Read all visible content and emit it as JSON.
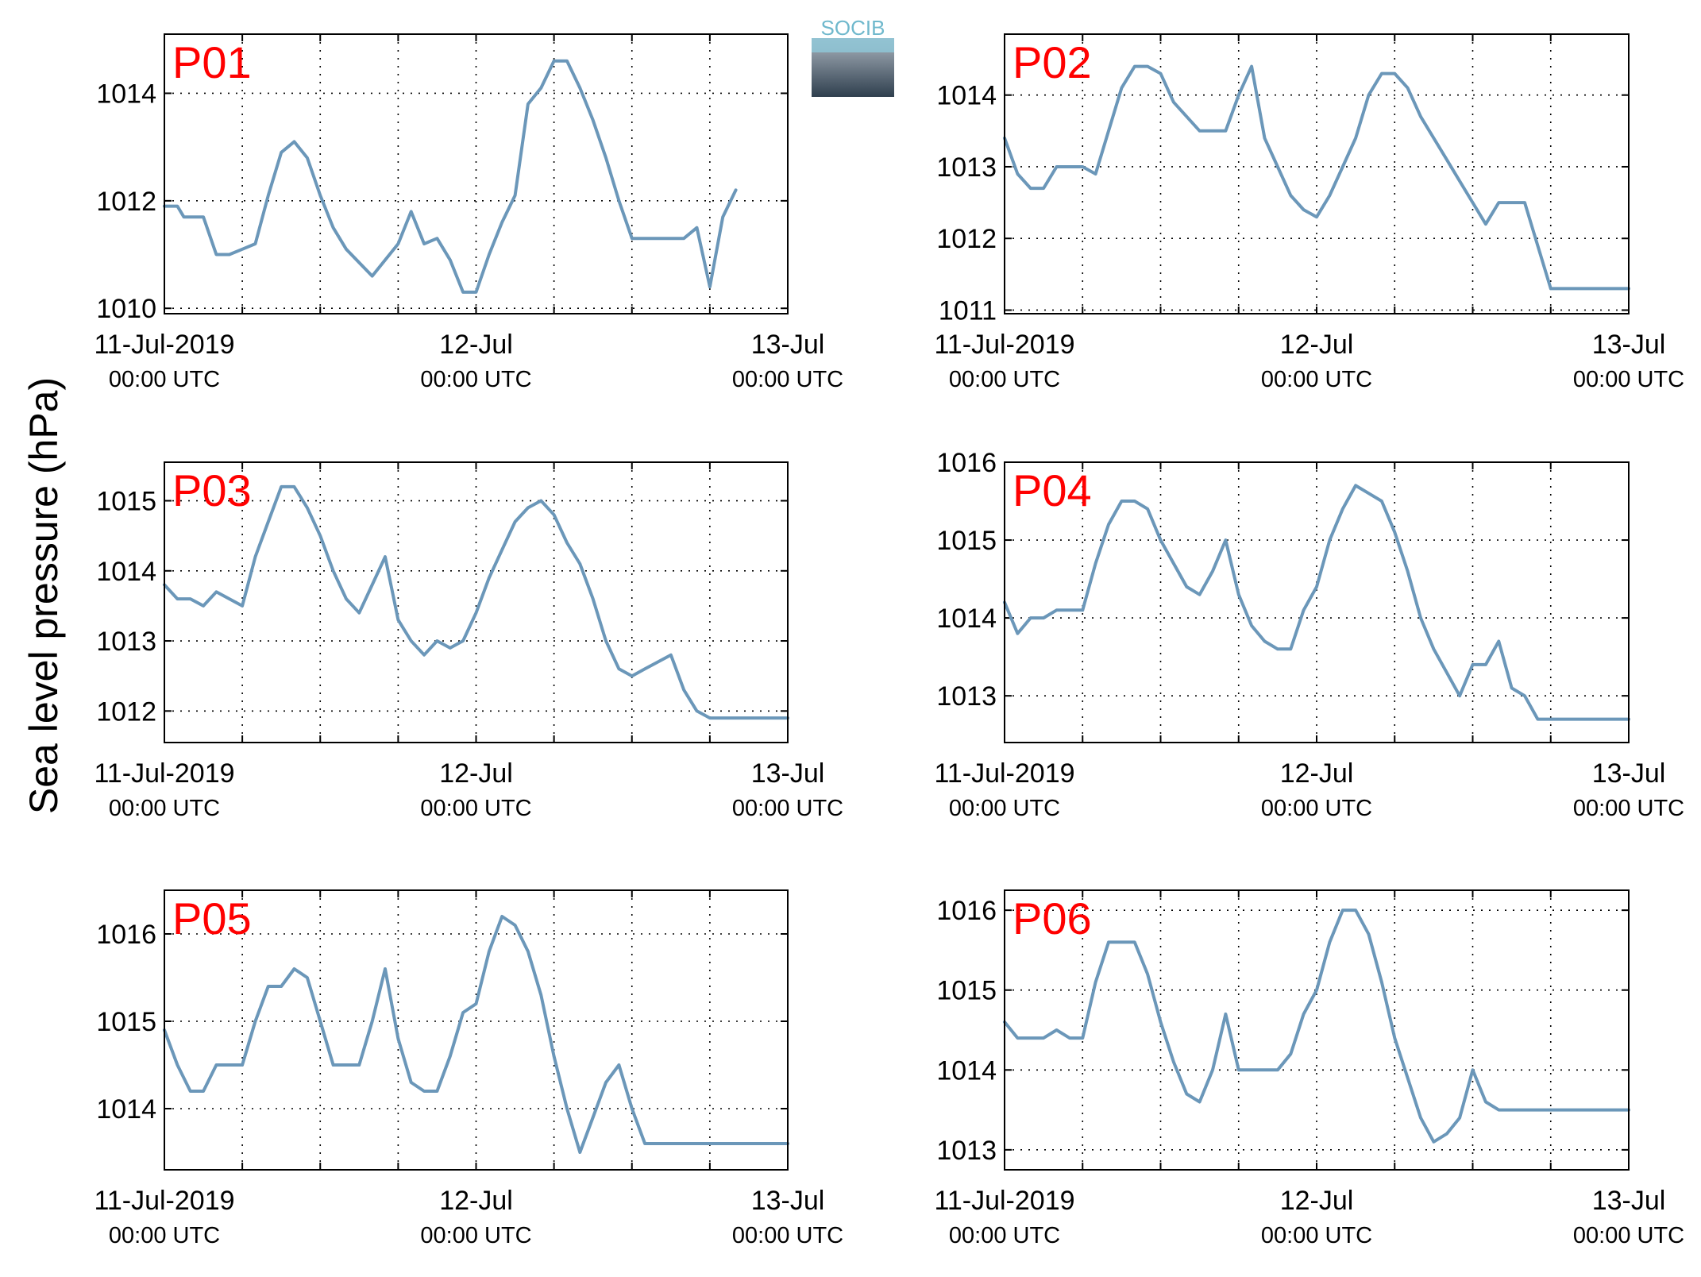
{
  "figure": {
    "ylabel": "Sea level pressure (hPa)",
    "logo_text": "SOCIB",
    "colors": {
      "line": "#6b97b9",
      "panel_label": "#ff0000",
      "axis": "#000000",
      "grid": "#000000"
    }
  },
  "chart_data": [
    {
      "type": "line",
      "title": "P01",
      "xlim": [
        "11-Jul-2019 00:00",
        "13-Jul-2019 00:00"
      ],
      "ylim": [
        1009.9,
        1015.1
      ],
      "yticks": [
        1010,
        1012,
        1014
      ],
      "xticks": [
        {
          "major": "11-Jul-2019",
          "minor": "00:00 UTC"
        },
        {
          "major": "12-Jul",
          "minor": "00:00 UTC"
        },
        {
          "major": "13-Jul",
          "minor": "00:00 UTC"
        }
      ],
      "xgrid_hours": [
        0,
        6,
        12,
        18,
        24,
        30,
        36,
        42,
        48
      ],
      "grid": true,
      "series": [
        {
          "x_hours": [
            0,
            1,
            1.5,
            3,
            4,
            5,
            6,
            7,
            8,
            9,
            10,
            11,
            12,
            13,
            14,
            16,
            18,
            19,
            20,
            21,
            22,
            23,
            24,
            25,
            26,
            27,
            28,
            29,
            30,
            31,
            32,
            33,
            34,
            35,
            36,
            37,
            38,
            39,
            40,
            41,
            42,
            43,
            44,
            45,
            46,
            46.5,
            47,
            47.5,
            48
          ],
          "values": [
            1011.9,
            1011.9,
            1011.7,
            1011.7,
            1011.0,
            1011.0,
            1011.1,
            1011.2,
            1012.1,
            1012.9,
            1013.1,
            1012.8,
            1012.1,
            1011.5,
            1011.1,
            1010.6,
            1011.2,
            1011.8,
            1011.2,
            1011.3,
            1010.9,
            1010.3,
            1010.3,
            1011.0,
            1011.6,
            1012.1,
            1013.8,
            1014.1,
            1014.6,
            1014.6,
            1014.1,
            1013.5,
            1012.8,
            1012.0,
            1011.3,
            1011.3,
            1011.3,
            1011.3,
            1011.3,
            1011.5,
            1010.4,
            1011.7,
            1012.2,
            null,
            null,
            null,
            null,
            null,
            null
          ]
        }
      ]
    },
    {
      "type": "line",
      "title": "P02",
      "xlim": [
        "11-Jul-2019 00:00",
        "13-Jul-2019 00:00"
      ],
      "ylim": [
        1010.95,
        1014.85
      ],
      "yticks": [
        1011,
        1012,
        1013,
        1014
      ],
      "xticks": [
        {
          "major": "11-Jul-2019",
          "minor": "00:00 UTC"
        },
        {
          "major": "12-Jul",
          "minor": "00:00 UTC"
        },
        {
          "major": "13-Jul",
          "minor": "00:00 UTC"
        }
      ],
      "xgrid_hours": [
        0,
        6,
        12,
        18,
        24,
        30,
        36,
        42,
        48
      ],
      "grid": true,
      "series": [
        {
          "x_hours": [
            0,
            1,
            2,
            3,
            4,
            5,
            6,
            7,
            8,
            9,
            10,
            11,
            12,
            13,
            14,
            15,
            16,
            17,
            18,
            19,
            20,
            21,
            22,
            23,
            24,
            25,
            26,
            27,
            28,
            29,
            30,
            31,
            32,
            33,
            34,
            35,
            36,
            37,
            38,
            39,
            40,
            41,
            42,
            43,
            44,
            45,
            46,
            47,
            48
          ],
          "values": [
            1013.4,
            1012.9,
            1012.7,
            1012.7,
            1013.0,
            1013.0,
            1013.0,
            1012.9,
            1013.5,
            1014.1,
            1014.4,
            1014.4,
            1014.3,
            1013.9,
            1013.7,
            1013.5,
            1013.5,
            1013.5,
            1014.0,
            1014.4,
            1013.4,
            1013.0,
            1012.6,
            1012.4,
            1012.3,
            1012.6,
            1013.0,
            1013.4,
            1014.0,
            1014.3,
            1014.3,
            1014.1,
            1013.7,
            1013.4,
            1013.1,
            1012.8,
            1012.5,
            1012.2,
            1012.5,
            1012.5,
            1012.5,
            1011.9,
            1011.3,
            1011.3,
            1011.3,
            1011.3,
            1011.3,
            1011.3,
            1011.3
          ]
        }
      ]
    },
    {
      "type": "line",
      "title": "P03",
      "xlim": [
        "11-Jul-2019 00:00",
        "13-Jul-2019 00:00"
      ],
      "ylim": [
        1011.55,
        1015.55
      ],
      "yticks": [
        1012,
        1013,
        1014,
        1015
      ],
      "xticks": [
        {
          "major": "11-Jul-2019",
          "minor": "00:00 UTC"
        },
        {
          "major": "12-Jul",
          "minor": "00:00 UTC"
        },
        {
          "major": "13-Jul",
          "minor": "00:00 UTC"
        }
      ],
      "xgrid_hours": [
        0,
        6,
        12,
        18,
        24,
        30,
        36,
        42,
        48
      ],
      "grid": true,
      "series": [
        {
          "x_hours": [
            0,
            1,
            2,
            3,
            4,
            5,
            6,
            7,
            8,
            9,
            10,
            11,
            12,
            13,
            14,
            15,
            16,
            17,
            18,
            19,
            20,
            21,
            22,
            23,
            24,
            25,
            26,
            27,
            28,
            29,
            30,
            31,
            32,
            33,
            34,
            35,
            36,
            37,
            38,
            39,
            40,
            41,
            42,
            43,
            44,
            45,
            46,
            47,
            48
          ],
          "values": [
            1013.8,
            1013.6,
            1013.6,
            1013.5,
            1013.7,
            1013.6,
            1013.5,
            1014.2,
            1014.7,
            1015.2,
            1015.2,
            1014.9,
            1014.5,
            1014.0,
            1013.6,
            1013.4,
            1013.8,
            1014.2,
            1013.3,
            1013.0,
            1012.8,
            1013.0,
            1012.9,
            1013.0,
            1013.4,
            1013.9,
            1014.3,
            1014.7,
            1014.9,
            1015.0,
            1014.8,
            1014.4,
            1014.1,
            1013.6,
            1013.0,
            1012.6,
            1012.5,
            1012.6,
            1012.7,
            1012.8,
            1012.3,
            1012.0,
            1011.9,
            1011.9,
            1011.9,
            1011.9,
            1011.9,
            1011.9,
            1011.9
          ]
        }
      ]
    },
    {
      "type": "line",
      "title": "P04",
      "xlim": [
        "11-Jul-2019 00:00",
        "13-Jul-2019 00:00"
      ],
      "ylim": [
        1012.4,
        1016.0
      ],
      "yticks": [
        1013,
        1014,
        1015,
        1016
      ],
      "xticks": [
        {
          "major": "11-Jul-2019",
          "minor": "00:00 UTC"
        },
        {
          "major": "12-Jul",
          "minor": "00:00 UTC"
        },
        {
          "major": "13-Jul",
          "minor": "00:00 UTC"
        }
      ],
      "xgrid_hours": [
        0,
        6,
        12,
        18,
        24,
        30,
        36,
        42,
        48
      ],
      "grid": true,
      "series": [
        {
          "x_hours": [
            0,
            1,
            2,
            3,
            4,
            5,
            6,
            7,
            8,
            9,
            10,
            11,
            12,
            13,
            14,
            15,
            16,
            17,
            18,
            19,
            20,
            21,
            22,
            23,
            24,
            25,
            26,
            27,
            28,
            29,
            30,
            31,
            32,
            33,
            34,
            35,
            36,
            37,
            38,
            39,
            40,
            41,
            42,
            43,
            44,
            45,
            46,
            47,
            48
          ],
          "values": [
            1014.2,
            1013.8,
            1014.0,
            1014.0,
            1014.1,
            1014.1,
            1014.1,
            1014.7,
            1015.2,
            1015.5,
            1015.5,
            1015.4,
            1015.0,
            1014.7,
            1014.4,
            1014.3,
            1014.6,
            1015.0,
            1014.3,
            1013.9,
            1013.7,
            1013.6,
            1013.6,
            1014.1,
            1014.4,
            1015.0,
            1015.4,
            1015.7,
            1015.6,
            1015.5,
            1015.1,
            1014.6,
            1014.0,
            1013.6,
            1013.3,
            1013.0,
            1013.4,
            1013.4,
            1013.7,
            1013.1,
            1013.0,
            1012.7,
            1012.7,
            1012.7,
            1012.7,
            1012.7,
            1012.7,
            1012.7,
            1012.7
          ]
        }
      ]
    },
    {
      "type": "line",
      "title": "P05",
      "xlim": [
        "11-Jul-2019 00:00",
        "13-Jul-2019 00:00"
      ],
      "ylim": [
        1013.3,
        1016.5
      ],
      "yticks": [
        1014,
        1015,
        1016
      ],
      "xticks": [
        {
          "major": "11-Jul-2019",
          "minor": "00:00 UTC"
        },
        {
          "major": "12-Jul",
          "minor": "00:00 UTC"
        },
        {
          "major": "13-Jul",
          "minor": "00:00 UTC"
        }
      ],
      "xgrid_hours": [
        0,
        6,
        12,
        18,
        24,
        30,
        36,
        42,
        48
      ],
      "grid": true,
      "series": [
        {
          "x_hours": [
            0,
            1,
            2,
            3,
            4,
            5,
            6,
            7,
            8,
            9,
            10,
            11,
            12,
            13,
            14,
            15,
            16,
            17,
            18,
            19,
            20,
            21,
            22,
            23,
            24,
            25,
            26,
            27,
            28,
            29,
            30,
            31,
            32,
            33,
            34,
            35,
            36,
            37,
            38,
            39,
            40,
            41,
            42,
            43,
            44,
            45,
            46,
            47,
            48
          ],
          "values": [
            1014.9,
            1014.5,
            1014.2,
            1014.2,
            1014.5,
            1014.5,
            1014.5,
            1015.0,
            1015.4,
            1015.4,
            1015.6,
            1015.5,
            1015.0,
            1014.5,
            1014.5,
            1014.5,
            1015.0,
            1015.6,
            1014.8,
            1014.3,
            1014.2,
            1014.2,
            1014.6,
            1015.1,
            1015.2,
            1015.8,
            1016.2,
            1016.1,
            1015.8,
            1015.3,
            1014.6,
            1014.0,
            1013.5,
            1013.9,
            1014.3,
            1014.5,
            1014.0,
            1013.6,
            1013.6,
            1013.6,
            1013.6,
            1013.6,
            1013.6,
            1013.6,
            1013.6,
            1013.6,
            1013.6,
            1013.6,
            1013.6
          ]
        }
      ]
    },
    {
      "type": "line",
      "title": "P06",
      "xlim": [
        "11-Jul-2019 00:00",
        "13-Jul-2019 00:00"
      ],
      "ylim": [
        1012.75,
        1016.25
      ],
      "yticks": [
        1013,
        1014,
        1015,
        1016
      ],
      "xticks": [
        {
          "major": "11-Jul-2019",
          "minor": "00:00 UTC"
        },
        {
          "major": "12-Jul",
          "minor": "00:00 UTC"
        },
        {
          "major": "13-Jul",
          "minor": "00:00 UTC"
        }
      ],
      "xgrid_hours": [
        0,
        6,
        12,
        18,
        24,
        30,
        36,
        42,
        48
      ],
      "grid": true,
      "series": [
        {
          "x_hours": [
            0,
            1,
            2,
            3,
            4,
            5,
            6,
            7,
            8,
            9,
            10,
            11,
            12,
            13,
            14,
            15,
            16,
            17,
            18,
            19,
            20,
            21,
            22,
            23,
            24,
            25,
            26,
            27,
            28,
            29,
            30,
            31,
            32,
            33,
            34,
            35,
            36,
            37,
            38,
            39,
            40,
            41,
            42,
            43,
            44,
            45,
            46,
            47,
            48
          ],
          "values": [
            1014.6,
            1014.4,
            1014.4,
            1014.4,
            1014.5,
            1014.4,
            1014.4,
            1015.1,
            1015.6,
            1015.6,
            1015.6,
            1015.2,
            1014.6,
            1014.1,
            1013.7,
            1013.6,
            1014.0,
            1014.7,
            1014.0,
            1014.0,
            1014.0,
            1014.0,
            1014.2,
            1014.7,
            1015.0,
            1015.6,
            1016.0,
            1016.0,
            1015.7,
            1015.1,
            1014.4,
            1013.9,
            1013.4,
            1013.1,
            1013.2,
            1013.4,
            1014.0,
            1013.6,
            1013.5,
            1013.5,
            1013.5,
            1013.5,
            1013.5,
            1013.5,
            1013.5,
            1013.5,
            1013.5,
            1013.5,
            1013.5
          ]
        }
      ]
    }
  ]
}
